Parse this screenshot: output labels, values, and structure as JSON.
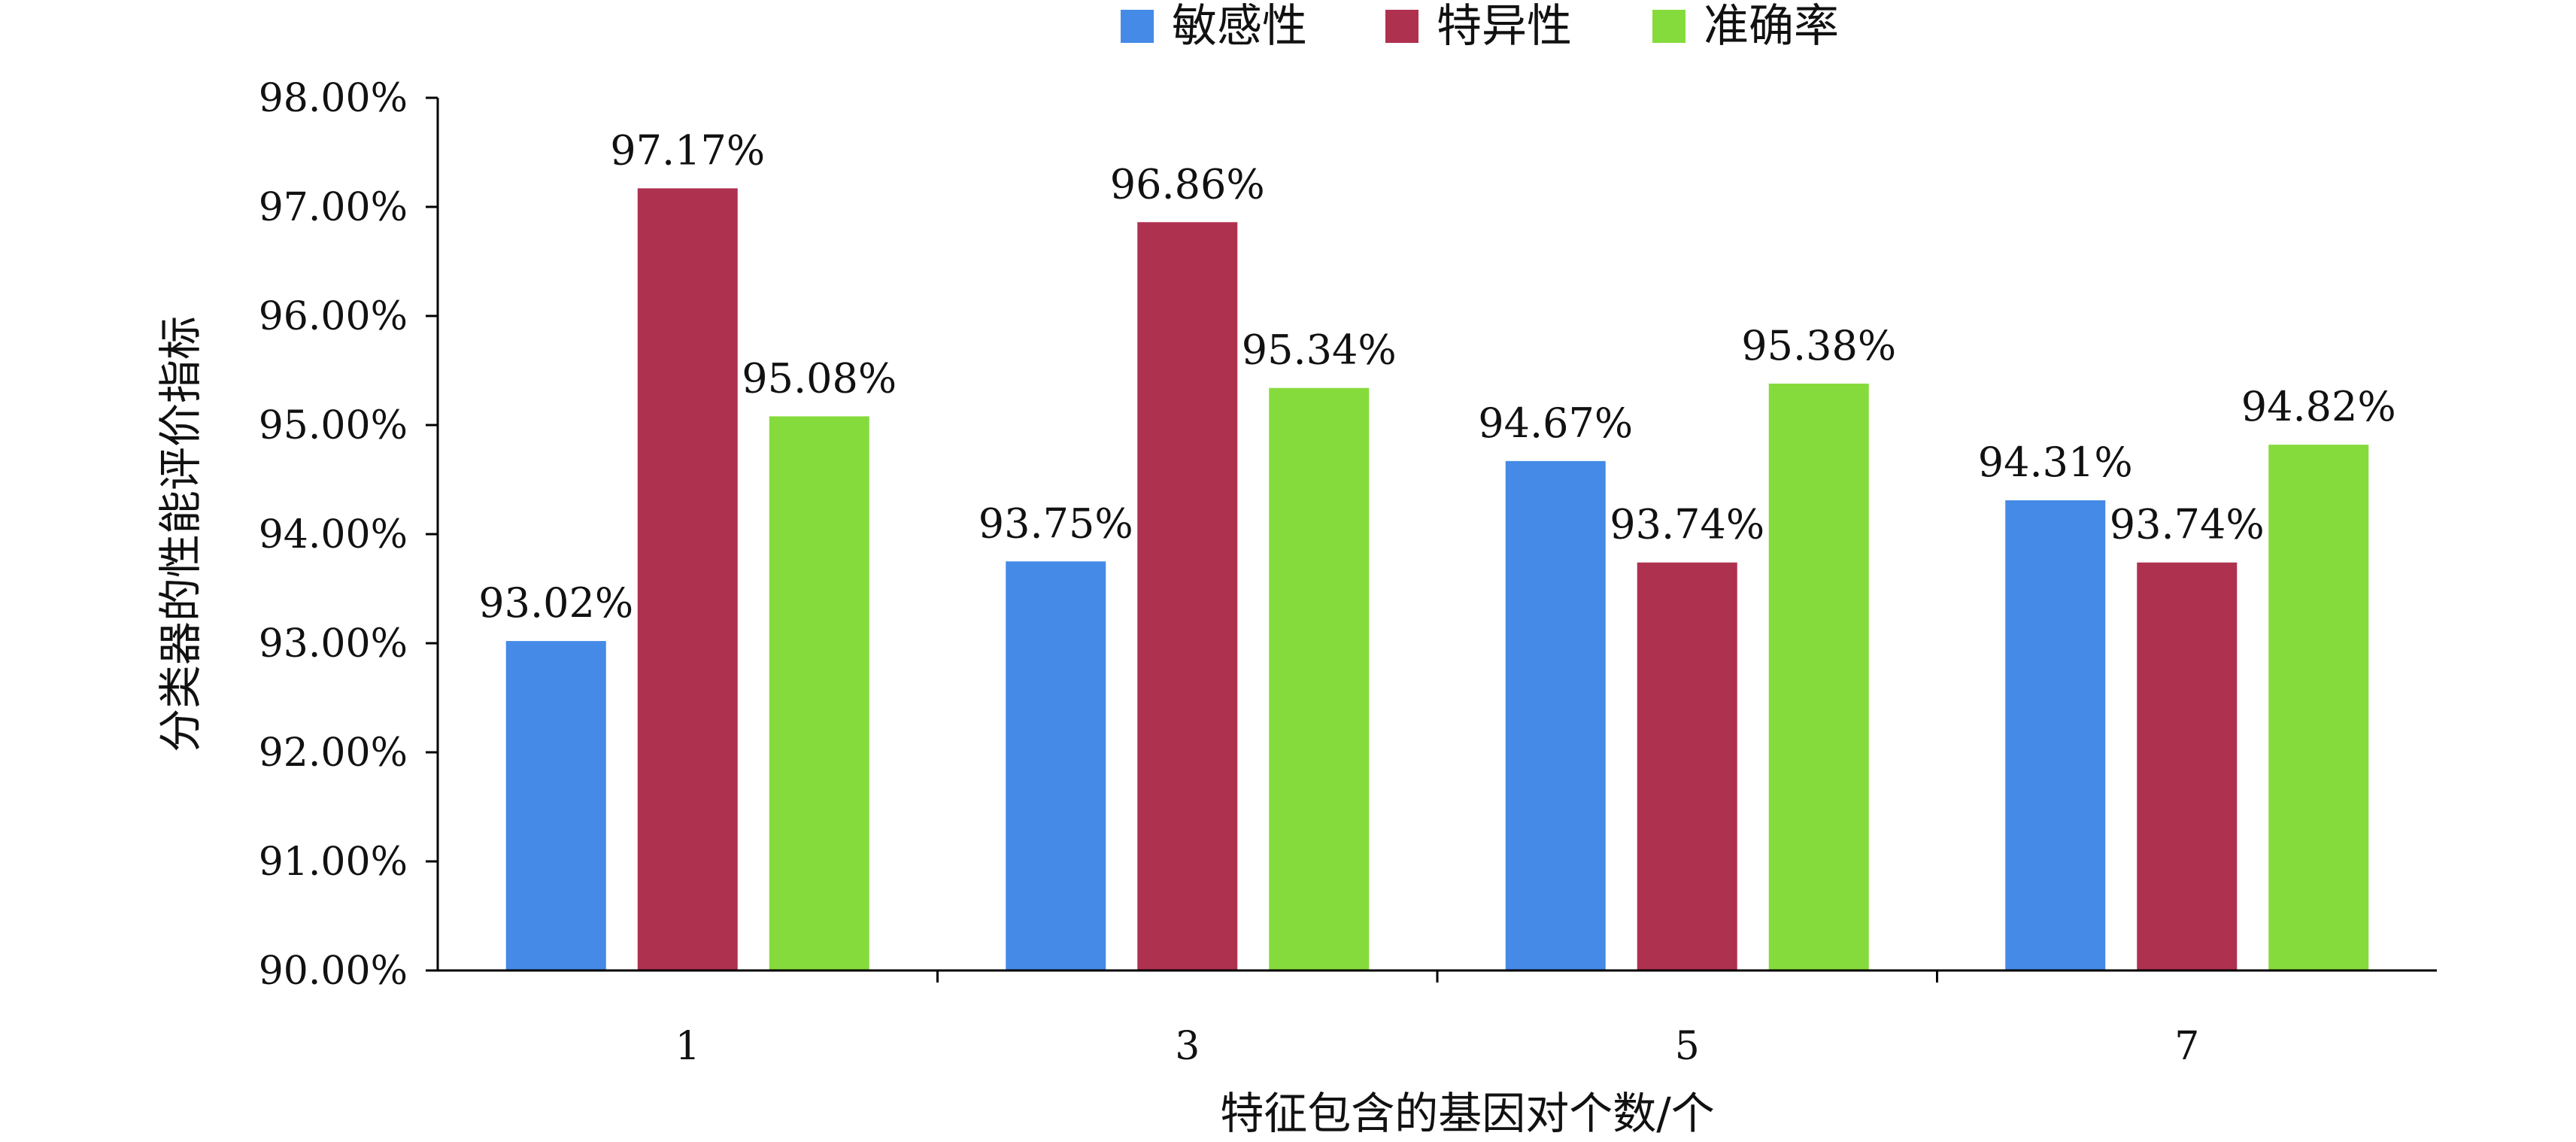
{
  "chart_data": {
    "type": "bar",
    "title": "",
    "xlabel": "特征包含的基因对个数/个",
    "ylabel": "分类器的性能评价指标",
    "categories": [
      "1",
      "3",
      "5",
      "7"
    ],
    "ylim": [
      90,
      98
    ],
    "yticks": [
      "90.00%",
      "91.00%",
      "92.00%",
      "93.00%",
      "94.00%",
      "95.00%",
      "96.00%",
      "97.00%",
      "98.00%"
    ],
    "ytick_values": [
      90,
      91,
      92,
      93,
      94,
      95,
      96,
      97,
      98
    ],
    "legend_position": "top-center",
    "grid": false,
    "series": [
      {
        "name": "敏感性",
        "color": "#448AE6",
        "values": [
          93.02,
          93.75,
          94.67,
          94.31
        ],
        "labels": [
          "93.02%",
          "93.75%",
          "94.67%",
          "94.31%"
        ]
      },
      {
        "name": "特异性",
        "color": "#AE3150",
        "values": [
          97.17,
          96.86,
          93.74,
          93.74
        ],
        "labels": [
          "97.17%",
          "96.86%",
          "93.74%",
          "93.74%"
        ]
      },
      {
        "name": "准确率",
        "color": "#86DB3C",
        "values": [
          95.08,
          95.34,
          95.38,
          94.82
        ],
        "labels": [
          "95.08%",
          "95.34%",
          "95.38%",
          "94.82%"
        ]
      }
    ]
  }
}
